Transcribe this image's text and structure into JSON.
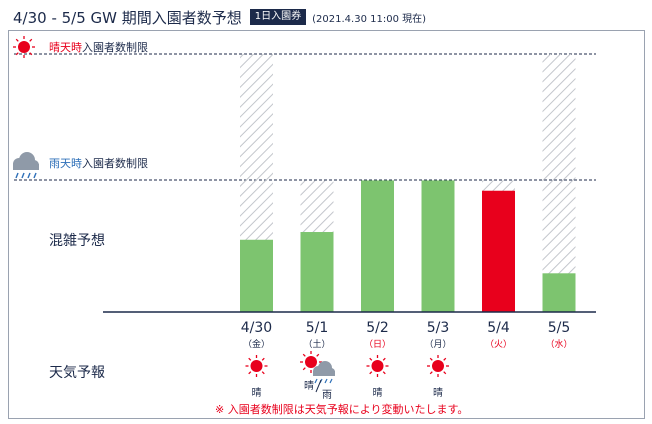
{
  "header": {
    "title": "4/30 - 5/5 GW 期間入園者数予想",
    "badge": "1日入園券",
    "timestamp": "(2021.4.30 11:00 現在)"
  },
  "labels": {
    "sunny_limit_prefix": "晴天時",
    "sunny_limit_suffix": "入園者数制限",
    "rainy_limit_prefix": "雨天時",
    "rainy_limit_suffix": "入園者数制限",
    "congestion": "混雑予想",
    "weather_forecast": "天気予報",
    "footnote": "※ 入園者数制限は天気予報により変動いたします。"
  },
  "colors": {
    "navy": "#1c2a4a",
    "green": "#7dc46f",
    "red": "#e8001c",
    "hatch": "#c3c6cc",
    "sun": "#e8001c",
    "cloud": "#8f9aa8"
  },
  "chart_data": {
    "type": "bar",
    "categories": [
      "4/30",
      "5/1",
      "5/2",
      "5/3",
      "5/4",
      "5/5"
    ],
    "days": [
      "金",
      "土",
      "日",
      "月",
      "火",
      "水"
    ],
    "weekend_day_label": [
      false,
      false,
      true,
      false,
      true,
      true
    ],
    "predicted_fraction_of_sunny_limit": [
      0.28,
      0.31,
      0.51,
      0.51,
      0.47,
      0.15
    ],
    "applicable_limit": [
      "sunny",
      "rainy",
      "rainy",
      "rainy",
      "rainy",
      "sunny"
    ],
    "rainy_limit_fraction_of_sunny_limit": 0.51,
    "highlight": [
      false,
      false,
      false,
      false,
      true,
      false
    ],
    "weather": [
      "sunny",
      "sunny/rain",
      "sunny",
      "sunny",
      "",
      ""
    ],
    "weather_labels": [
      "晴",
      "",
      "晴",
      "晴",
      "",
      ""
    ],
    "weather_labels_split": [
      "",
      "晴/雨",
      "",
      "",
      "",
      ""
    ]
  }
}
